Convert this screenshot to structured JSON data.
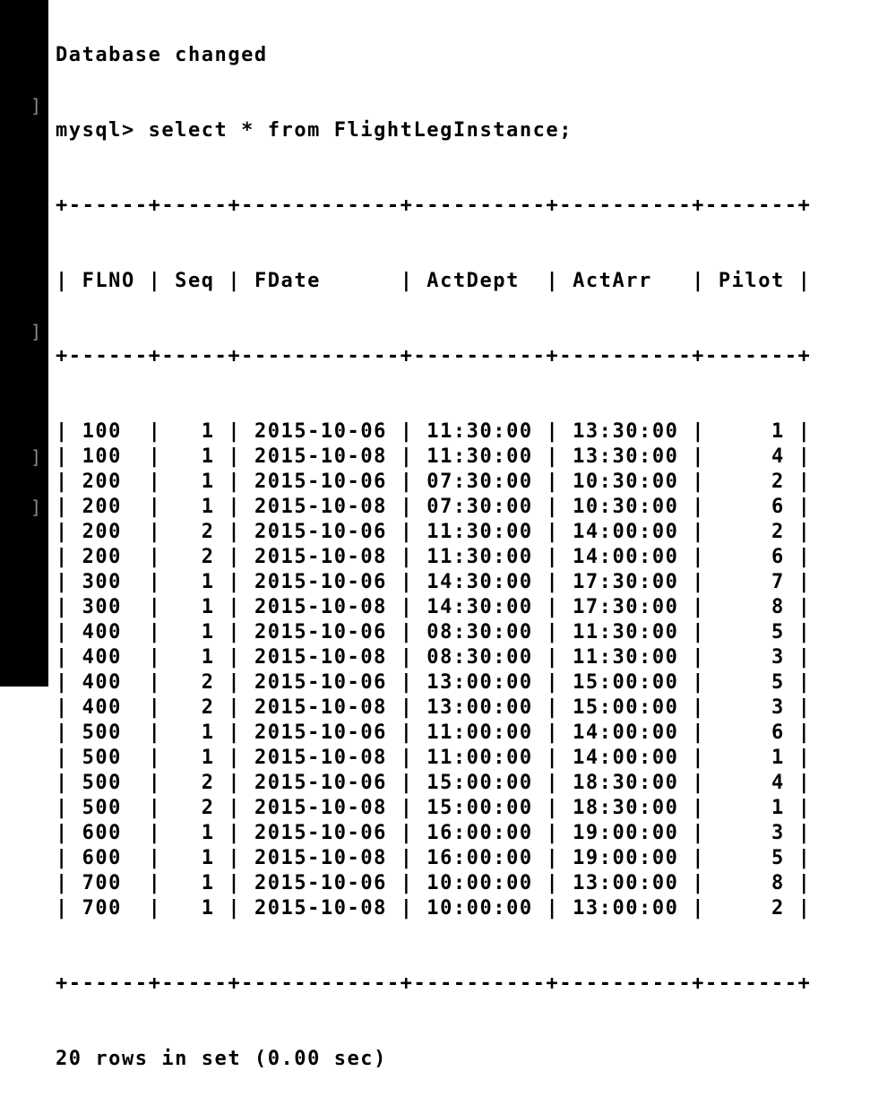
{
  "terminal": {
    "db_changed": "Database changed",
    "prompt": "mysql> ",
    "command": "select * from FlightLegInstance;",
    "result_footer": "20 rows in set (0.00 sec)"
  },
  "table": {
    "columns": [
      "FLNO",
      "Seq",
      "FDate",
      "ActDept",
      "ActArr",
      "Pilot"
    ],
    "rows": [
      [
        "100",
        "1",
        "2015-10-06",
        "11:30:00",
        "13:30:00",
        "1"
      ],
      [
        "100",
        "1",
        "2015-10-08",
        "11:30:00",
        "13:30:00",
        "4"
      ],
      [
        "200",
        "1",
        "2015-10-06",
        "07:30:00",
        "10:30:00",
        "2"
      ],
      [
        "200",
        "1",
        "2015-10-08",
        "07:30:00",
        "10:30:00",
        "6"
      ],
      [
        "200",
        "2",
        "2015-10-06",
        "11:30:00",
        "14:00:00",
        "2"
      ],
      [
        "200",
        "2",
        "2015-10-08",
        "11:30:00",
        "14:00:00",
        "6"
      ],
      [
        "300",
        "1",
        "2015-10-06",
        "14:30:00",
        "17:30:00",
        "7"
      ],
      [
        "300",
        "1",
        "2015-10-08",
        "14:30:00",
        "17:30:00",
        "8"
      ],
      [
        "400",
        "1",
        "2015-10-06",
        "08:30:00",
        "11:30:00",
        "5"
      ],
      [
        "400",
        "1",
        "2015-10-08",
        "08:30:00",
        "11:30:00",
        "3"
      ],
      [
        "400",
        "2",
        "2015-10-06",
        "13:00:00",
        "15:00:00",
        "5"
      ],
      [
        "400",
        "2",
        "2015-10-08",
        "13:00:00",
        "15:00:00",
        "3"
      ],
      [
        "500",
        "1",
        "2015-10-06",
        "11:00:00",
        "14:00:00",
        "6"
      ],
      [
        "500",
        "1",
        "2015-10-08",
        "11:00:00",
        "14:00:00",
        "1"
      ],
      [
        "500",
        "2",
        "2015-10-06",
        "15:00:00",
        "18:30:00",
        "4"
      ],
      [
        "500",
        "2",
        "2015-10-08",
        "15:00:00",
        "18:30:00",
        "1"
      ],
      [
        "600",
        "1",
        "2015-10-06",
        "16:00:00",
        "19:00:00",
        "3"
      ],
      [
        "600",
        "1",
        "2015-10-08",
        "16:00:00",
        "19:00:00",
        "5"
      ],
      [
        "700",
        "1",
        "2015-10-06",
        "10:00:00",
        "13:00:00",
        "8"
      ],
      [
        "700",
        "1",
        "2015-10-08",
        "10:00:00",
        "13:00:00",
        "2"
      ]
    ]
  }
}
